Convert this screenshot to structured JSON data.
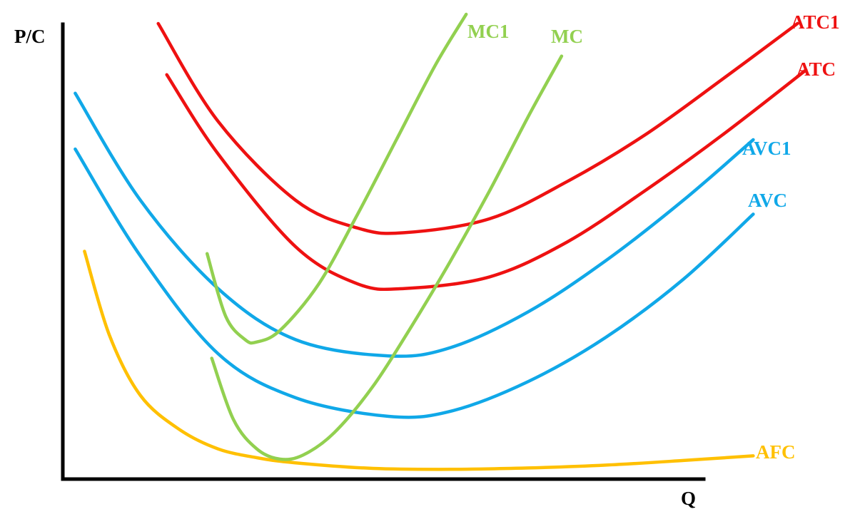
{
  "chart_data": {
    "type": "line",
    "title": "",
    "xlabel": "Q",
    "ylabel": "P/C",
    "xlim": [
      0,
      100
    ],
    "ylim": [
      0,
      100
    ],
    "grid": false,
    "legend": "inline labels at curve ends",
    "series": [
      {
        "id": "atc1",
        "name": "ATC1",
        "color": "#ee1111",
        "x": [
          12.3,
          20,
          30,
          38,
          44,
          55,
          65,
          75,
          85,
          94.7
        ],
        "y": [
          98,
          77,
          60,
          54,
          53,
          56,
          64,
          74,
          86,
          98
        ]
      },
      {
        "id": "atc",
        "name": "ATC",
        "color": "#ee1111",
        "x": [
          13.4,
          20,
          30,
          38,
          44,
          55,
          65,
          75,
          85,
          95.8
        ],
        "y": [
          87,
          70,
          50,
          42,
          41,
          43.5,
          51,
          62,
          74,
          88
        ]
      },
      {
        "id": "avc1",
        "name": "AVC1",
        "color": "#10a8e8",
        "x": [
          1.6,
          10,
          20,
          30,
          42,
          50,
          60,
          70,
          80,
          89
        ],
        "y": [
          83,
          60,
          41,
          30,
          26.5,
          28.3,
          36,
          47,
          60,
          73
        ]
      },
      {
        "id": "avc",
        "name": "AVC",
        "color": "#10a8e8",
        "x": [
          1.6,
          10,
          20,
          30,
          42,
          50,
          60,
          70,
          80,
          89
        ],
        "y": [
          71,
          48,
          27,
          17.5,
          13.5,
          14.6,
          21,
          30.5,
          43,
          57
        ]
      },
      {
        "id": "afc",
        "name": "AFC",
        "color": "#ffc000",
        "x": [
          2.8,
          6,
          10,
          15,
          20,
          25,
          30,
          40,
          50,
          60,
          70,
          80,
          89
        ],
        "y": [
          49,
          31,
          18,
          10.7,
          6.5,
          4.6,
          3.5,
          2.3,
          2.1,
          2.4,
          3,
          4,
          5
        ]
      },
      {
        "id": "mc1",
        "name": "MC1",
        "color": "#92d050",
        "x": [
          18.6,
          21,
          23.5,
          25,
          28,
          33,
          38,
          43,
          48,
          52
        ],
        "y": [
          48.5,
          35,
          30,
          29.5,
          32,
          42,
          57,
          73,
          89,
          100
        ]
      },
      {
        "id": "mc",
        "name": "MC",
        "color": "#92d050",
        "x": [
          19.2,
          22,
          25,
          28,
          31,
          35,
          40,
          45,
          50,
          55,
          60,
          64.3
        ],
        "y": [
          26,
          12.8,
          6.5,
          4.3,
          5.2,
          10,
          20,
          33,
          47,
          62,
          78,
          91
        ]
      }
    ],
    "labels": [
      {
        "series": "mc1",
        "text": "MC1"
      },
      {
        "series": "mc",
        "text": "MC"
      },
      {
        "series": "atc1",
        "text": "ATC1"
      },
      {
        "series": "atc",
        "text": "ATC"
      },
      {
        "series": "avc1",
        "text": "AVC1"
      },
      {
        "series": "avc",
        "text": "AVC"
      },
      {
        "series": "afc",
        "text": "AFC"
      }
    ]
  }
}
